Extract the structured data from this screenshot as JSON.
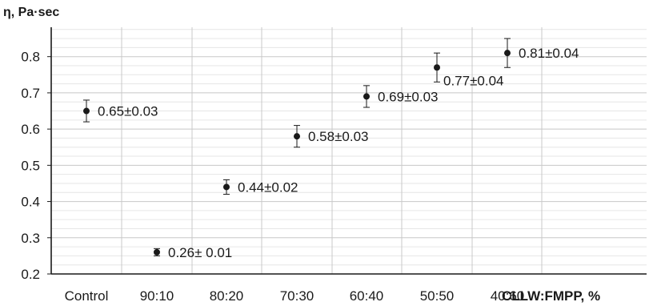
{
  "chart_data": {
    "type": "scatter",
    "ylabel": "η, Pa·sec",
    "xlabel": "CLLW:FMPP, %",
    "categories": [
      "Control",
      "90:10",
      "80:20",
      "70:30",
      "60:40",
      "50:50",
      "40:60"
    ],
    "values": [
      0.65,
      0.26,
      0.44,
      0.58,
      0.69,
      0.77,
      0.81
    ],
    "errors": [
      0.03,
      0.01,
      0.02,
      0.03,
      0.03,
      0.04,
      0.04
    ],
    "data_labels": [
      "0.65±0.03",
      "0.26± 0.01",
      "0.44±0.02",
      "0.58±0.03",
      "0.69±0.03",
      "0.77±0.04",
      "0.81±0.04"
    ],
    "yticks": [
      "0.2",
      "0.3",
      "0.4",
      "0.5",
      "0.6",
      "0.7",
      "0.8"
    ],
    "ylim": [
      0.2,
      0.89
    ],
    "grid": true,
    "gridlines": "major and minor"
  }
}
